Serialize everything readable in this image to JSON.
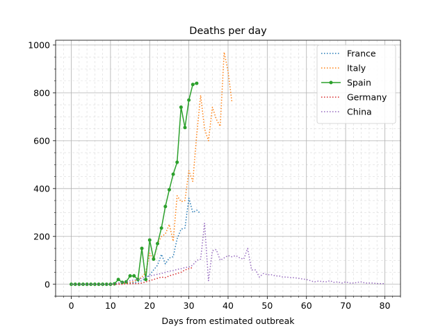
{
  "chart_data": {
    "type": "line",
    "title": "Deaths per day",
    "xlabel": "Days from estimated outbreak",
    "ylabel": "",
    "xlim": [
      -4,
      84
    ],
    "ylim": [
      -50,
      1020
    ],
    "x_ticks": [
      0,
      10,
      20,
      30,
      40,
      50,
      60,
      70,
      80
    ],
    "y_ticks": [
      0,
      200,
      400,
      600,
      800,
      1000
    ],
    "x_minor_step": 2,
    "y_minor_step": 50,
    "grid": true,
    "legend_position": "top-right",
    "series": [
      {
        "name": "France",
        "color": "#1f77b4",
        "style": "dotted",
        "x": [
          0,
          1,
          2,
          3,
          4,
          5,
          6,
          7,
          8,
          9,
          10,
          11,
          12,
          13,
          14,
          15,
          16,
          17,
          18,
          19,
          20,
          21,
          22,
          23,
          24,
          25,
          26,
          27,
          28,
          29,
          30,
          31,
          32,
          33
        ],
        "y": [
          0,
          0,
          0,
          0,
          0,
          0,
          0,
          0,
          0,
          0,
          0,
          0,
          0,
          2,
          3,
          5,
          7,
          10,
          15,
          25,
          40,
          60,
          80,
          125,
          85,
          110,
          115,
          190,
          230,
          235,
          360,
          300,
          310,
          295
        ]
      },
      {
        "name": "Italy",
        "color": "#ff7f0e",
        "style": "dotted",
        "x": [
          0,
          1,
          2,
          3,
          4,
          5,
          6,
          7,
          8,
          9,
          10,
          11,
          12,
          13,
          14,
          15,
          16,
          17,
          18,
          19,
          20,
          21,
          22,
          23,
          24,
          25,
          26,
          27,
          28,
          29,
          30,
          31,
          32,
          33,
          34,
          35,
          36,
          37,
          38,
          39,
          40,
          41
        ],
        "y": [
          0,
          0,
          0,
          0,
          0,
          0,
          0,
          0,
          0,
          0,
          0,
          1,
          2,
          3,
          5,
          8,
          12,
          20,
          30,
          50,
          130,
          100,
          170,
          200,
          210,
          250,
          180,
          370,
          345,
          350,
          475,
          430,
          625,
          790,
          650,
          600,
          740,
          690,
          660,
          970,
          890,
          760
        ]
      },
      {
        "name": "Spain",
        "color": "#2ca02c",
        "style": "solid-markers",
        "x": [
          0,
          1,
          2,
          3,
          4,
          5,
          6,
          7,
          8,
          9,
          10,
          11,
          12,
          13,
          14,
          15,
          16,
          17,
          18,
          19,
          20,
          21,
          22,
          23,
          24,
          25,
          26,
          27,
          28,
          29,
          30,
          31,
          32
        ],
        "y": [
          0,
          0,
          0,
          0,
          0,
          0,
          0,
          0,
          0,
          0,
          0,
          2,
          20,
          8,
          10,
          35,
          35,
          20,
          150,
          20,
          185,
          105,
          170,
          235,
          325,
          395,
          460,
          510,
          740,
          655,
          770,
          835,
          840
        ]
      },
      {
        "name": "Germany",
        "color": "#d62728",
        "style": "dotted",
        "x": [
          0,
          1,
          2,
          3,
          4,
          5,
          6,
          7,
          8,
          9,
          10,
          11,
          12,
          13,
          14,
          15,
          16,
          17,
          18,
          19,
          20,
          21,
          22,
          23,
          24,
          25,
          26,
          27,
          28,
          29,
          30,
          31
        ],
        "y": [
          0,
          0,
          0,
          0,
          0,
          0,
          0,
          0,
          0,
          0,
          0,
          0,
          0,
          0,
          2,
          2,
          3,
          3,
          5,
          10,
          15,
          20,
          25,
          30,
          28,
          35,
          40,
          45,
          50,
          60,
          65,
          70
        ]
      },
      {
        "name": "China",
        "color": "#9467bd",
        "style": "dotted",
        "x": [
          0,
          1,
          2,
          3,
          4,
          5,
          6,
          7,
          8,
          9,
          10,
          11,
          12,
          13,
          14,
          15,
          16,
          17,
          18,
          19,
          20,
          21,
          22,
          23,
          24,
          25,
          26,
          27,
          28,
          29,
          30,
          31,
          32,
          33,
          34,
          35,
          36,
          37,
          38,
          39,
          40,
          41,
          42,
          43,
          44,
          45,
          46,
          47,
          48,
          49,
          50,
          51,
          52,
          53,
          54,
          55,
          56,
          57,
          58,
          59,
          60,
          61,
          62,
          63,
          64,
          65,
          66,
          67,
          68,
          69,
          70,
          71,
          72,
          73,
          74,
          75,
          76,
          77,
          78,
          79,
          80
        ],
        "y": [
          0,
          0,
          0,
          0,
          0,
          0,
          0,
          0,
          0,
          0,
          0,
          2,
          5,
          8,
          10,
          15,
          18,
          20,
          25,
          30,
          35,
          38,
          42,
          45,
          50,
          55,
          57,
          62,
          65,
          70,
          72,
          80,
          100,
          105,
          255,
          15,
          140,
          145,
          100,
          110,
          120,
          115,
          120,
          110,
          105,
          150,
          60,
          60,
          30,
          45,
          40,
          40,
          35,
          35,
          30,
          30,
          28,
          27,
          25,
          22,
          20,
          15,
          10,
          13,
          12,
          10,
          15,
          8,
          10,
          5,
          10,
          5,
          5,
          8,
          10,
          5,
          5,
          5,
          3,
          3,
          3
        ]
      }
    ]
  }
}
